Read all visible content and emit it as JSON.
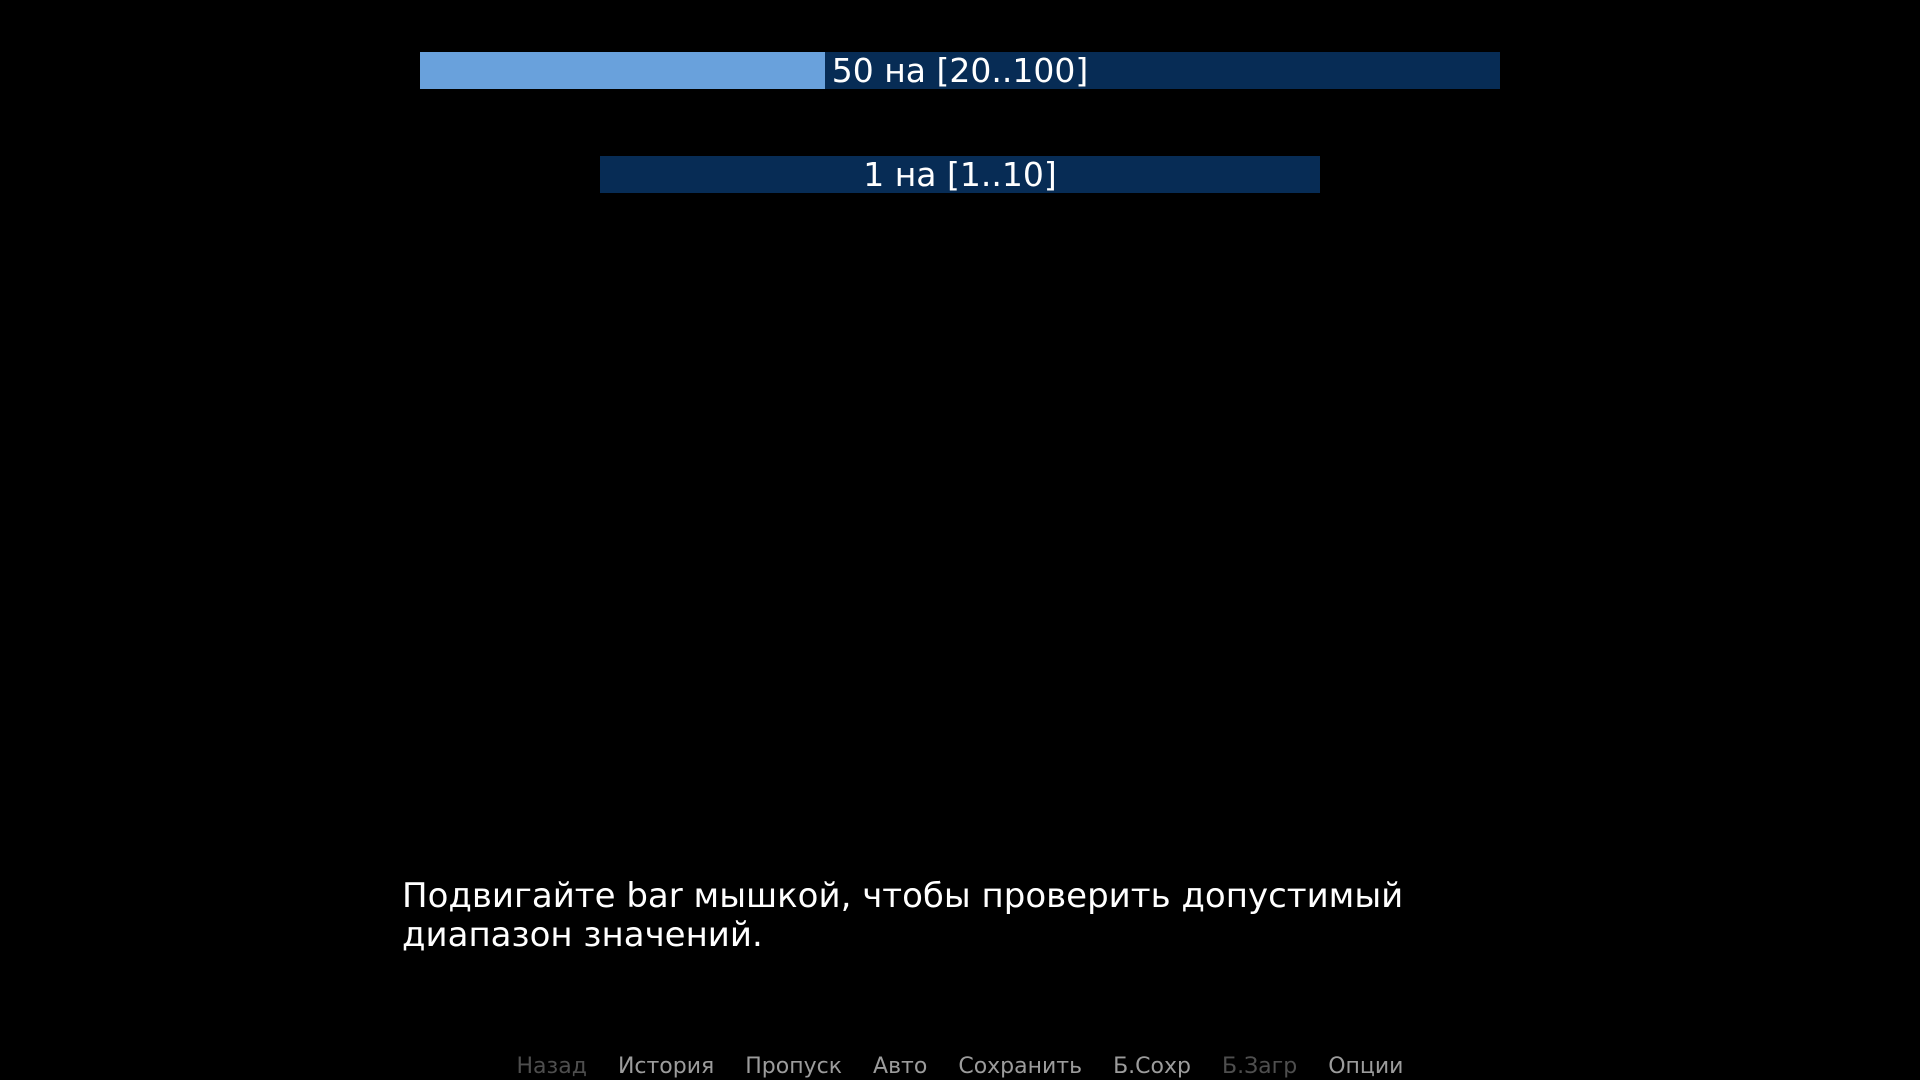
{
  "app": {
    "background_color": "#000000"
  },
  "bars": [
    {
      "label": "50 на [20..100]",
      "value": 50,
      "range_min": 20,
      "range_max": 100,
      "fill_percent": 37.5,
      "fill_color": "#69a1dc",
      "trough_color": "#072c55",
      "text_color": "#ffffff"
    },
    {
      "label": "1 на [1..10]",
      "value": 1,
      "range_min": 1,
      "range_max": 10,
      "fill_percent": 0,
      "fill_color": "#69a1dc",
      "trough_color": "#072c55",
      "text_color": "#ffffff"
    }
  ],
  "message": {
    "line1": "Подвигайте bar мышкой, чтобы проверить допустимый",
    "line2": "диапазон значений.",
    "color": "#ffffff"
  },
  "quick_menu": {
    "idle_color": "#9c9c9c",
    "insensitive_color": "#4e4e4e",
    "items": [
      {
        "label": "Назад",
        "enabled": false
      },
      {
        "label": "История",
        "enabled": true
      },
      {
        "label": "Пропуск",
        "enabled": true
      },
      {
        "label": "Авто",
        "enabled": true
      },
      {
        "label": "Сохранить",
        "enabled": true
      },
      {
        "label": "Б.Сохр",
        "enabled": true
      },
      {
        "label": "Б.Загр",
        "enabled": false
      },
      {
        "label": "Опции",
        "enabled": true
      }
    ]
  }
}
